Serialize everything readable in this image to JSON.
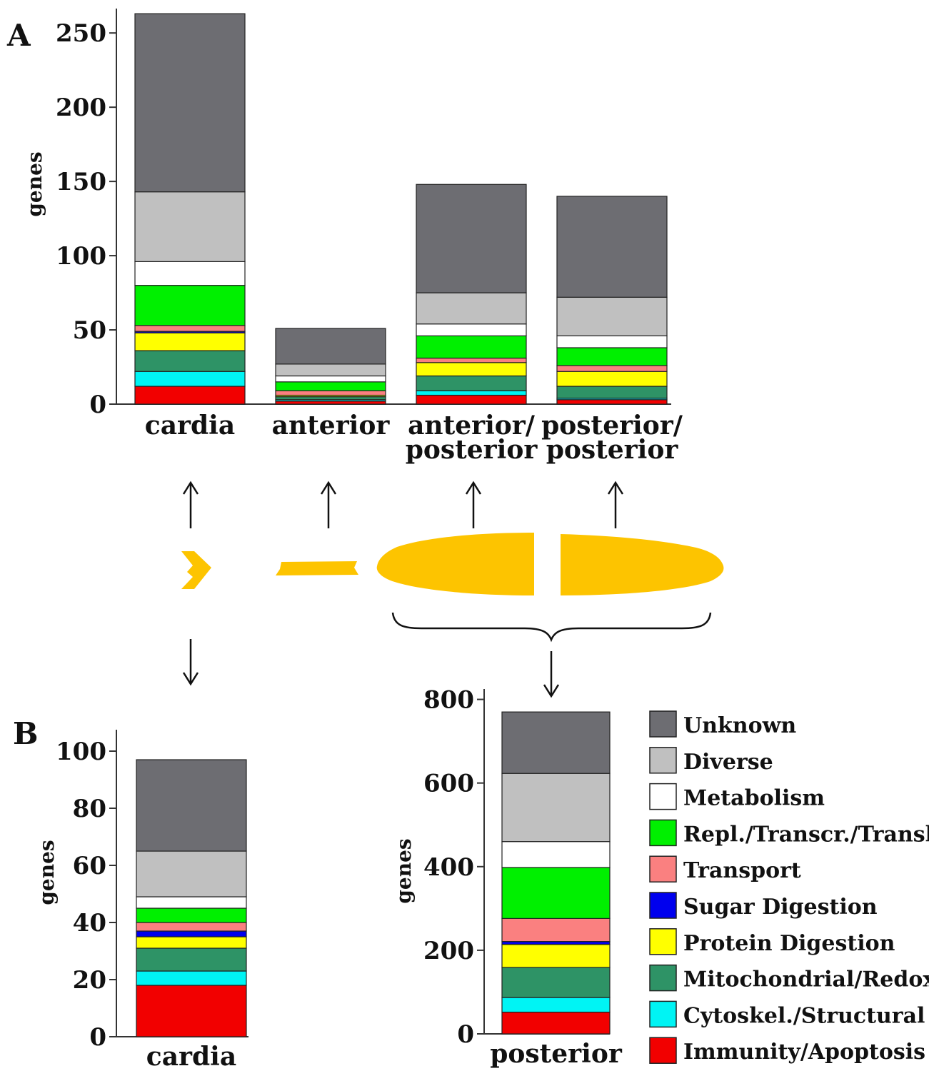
{
  "panel_labels": {
    "a": "A",
    "b": "B"
  },
  "colors": {
    "Unknown": "#6d6d72",
    "Diverse": "#c0c0c0",
    "Metabolism": "#ffffff",
    "Repl./Transcr./Transl.": "#00f000",
    "Transport": "#fa8080",
    "Sugar Digestion": "#0000ee",
    "Protein Digestion": "#ffff00",
    "Mitochondrial/Redox": "#2e9366",
    "Cytoskel./Structural": "#00f4f4",
    "Immunity/Apoptosis": "#f20000",
    "gut": "#fdc400"
  },
  "legend": [
    "Unknown",
    "Diverse",
    "Metabolism",
    "Repl./Transcr./Transl.",
    "Transport",
    "Sugar Digestion",
    "Protein Digestion",
    "Mitochondrial/Redox",
    "Cytoskel./Structural",
    "Immunity/Apoptosis"
  ],
  "chart_data": [
    {
      "type": "bar",
      "stacked": true,
      "panel": "A",
      "ylabel": "genes",
      "ylim": [
        0,
        265
      ],
      "yticks": [
        0,
        50,
        100,
        150,
        200,
        250
      ],
      "categories": [
        [
          "cardia"
        ],
        [
          "anterior"
        ],
        [
          "anterior/",
          "posterior"
        ],
        [
          "posterior/",
          "posterior"
        ]
      ],
      "series": [
        {
          "name": "Immunity/Apoptosis",
          "values": [
            12,
            2,
            6,
            3
          ]
        },
        {
          "name": "Cytoskel./Structural",
          "values": [
            10,
            1,
            3,
            1
          ]
        },
        {
          "name": "Mitochondrial/Redox",
          "values": [
            14,
            2,
            10,
            8
          ]
        },
        {
          "name": "Protein Digestion",
          "values": [
            12,
            1,
            9,
            10
          ]
        },
        {
          "name": "Sugar Digestion",
          "values": [
            1,
            0,
            0,
            0
          ]
        },
        {
          "name": "Transport",
          "values": [
            4,
            3,
            3,
            4
          ]
        },
        {
          "name": "Repl./Transcr./Transl.",
          "values": [
            27,
            6,
            15,
            12
          ]
        },
        {
          "name": "Metabolism",
          "values": [
            16,
            4,
            8,
            8
          ]
        },
        {
          "name": "Diverse",
          "values": [
            47,
            8,
            21,
            26
          ]
        },
        {
          "name": "Unknown",
          "values": [
            120,
            24,
            73,
            68
          ]
        }
      ]
    },
    {
      "type": "bar",
      "stacked": true,
      "panel": "B",
      "ylabel": "genes",
      "ylim": [
        0,
        108
      ],
      "yticks": [
        0,
        20,
        40,
        60,
        80,
        100
      ],
      "categories": [
        [
          "cardia"
        ]
      ],
      "series": [
        {
          "name": "Immunity/Apoptosis",
          "values": [
            18
          ]
        },
        {
          "name": "Cytoskel./Structural",
          "values": [
            5
          ]
        },
        {
          "name": "Mitochondrial/Redox",
          "values": [
            8
          ]
        },
        {
          "name": "Protein Digestion",
          "values": [
            4
          ]
        },
        {
          "name": "Sugar Digestion",
          "values": [
            2
          ]
        },
        {
          "name": "Transport",
          "values": [
            3
          ]
        },
        {
          "name": "Repl./Transcr./Transl.",
          "values": [
            5
          ]
        },
        {
          "name": "Metabolism",
          "values": [
            4
          ]
        },
        {
          "name": "Diverse",
          "values": [
            16
          ]
        },
        {
          "name": "Unknown",
          "values": [
            32
          ]
        }
      ]
    },
    {
      "type": "bar",
      "stacked": true,
      "panel": "B",
      "ylabel": "genes",
      "ylim": [
        0,
        830
      ],
      "yticks": [
        0,
        200,
        400,
        600,
        800
      ],
      "categories": [
        [
          "posterior"
        ]
      ],
      "series": [
        {
          "name": "Immunity/Apoptosis",
          "values": [
            52
          ]
        },
        {
          "name": "Cytoskel./Structural",
          "values": [
            35
          ]
        },
        {
          "name": "Mitochondrial/Redox",
          "values": [
            72
          ]
        },
        {
          "name": "Protein Digestion",
          "values": [
            55
          ]
        },
        {
          "name": "Sugar Digestion",
          "values": [
            7
          ]
        },
        {
          "name": "Transport",
          "values": [
            55
          ]
        },
        {
          "name": "Repl./Transcr./Transl.",
          "values": [
            122
          ]
        },
        {
          "name": "Metabolism",
          "values": [
            62
          ]
        },
        {
          "name": "Diverse",
          "values": [
            163
          ]
        },
        {
          "name": "Unknown",
          "values": [
            147
          ]
        }
      ]
    }
  ]
}
